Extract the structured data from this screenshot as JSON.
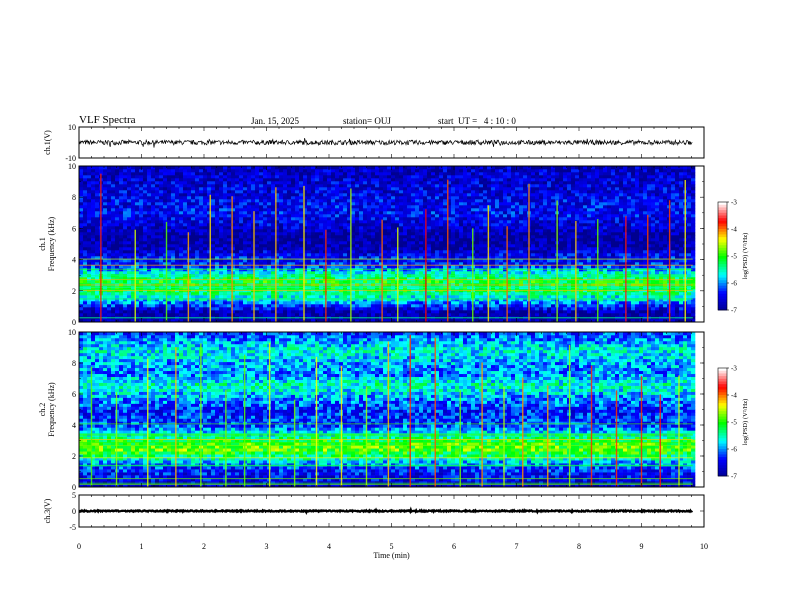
{
  "header": {
    "title": "VLF Spectra",
    "date": "Jan. 15, 2025",
    "station": "station= OUJ",
    "start": "start  UT =   4 : 10 : 0"
  },
  "colorbar_label": "log(PSD) (V²/Hz)",
  "colors": {
    "background": "#ffffff",
    "frame": "#000000",
    "colormap": [
      "#00008f",
      "#0000ff",
      "#00ffff",
      "#00ff00",
      "#ffff00",
      "#ff0000",
      "#ffffff"
    ]
  },
  "chart_data": [
    {
      "type": "line",
      "name": "ch1-waveform",
      "ylabel": "ch.1(V)",
      "ylim": [
        -10,
        10
      ],
      "yticks": [
        "10",
        "-10"
      ],
      "x_range_min": [
        0,
        10
      ],
      "data_extent_min": 9.82,
      "level_V": 0.0,
      "noise_amplitude_V": 1.5,
      "grid": false
    },
    {
      "type": "heatmap",
      "name": "ch1-spectrogram",
      "ylabel": "ch.1\nFrequency (kHz)",
      "ylim": [
        0,
        10
      ],
      "yticks": [
        "0",
        "2",
        "4",
        "6",
        "8",
        "10"
      ],
      "x_range_min": [
        0,
        10
      ],
      "data_extent_min": 9.82,
      "z_range_logPSD": [
        -7,
        -3
      ],
      "colorbar_ticks": [
        "-3",
        "-4",
        "-5",
        "-6",
        "-7"
      ],
      "profile_logPSD": [
        {
          "f_kHz": 0.0,
          "z": -6.8
        },
        {
          "f_kHz": 0.6,
          "z": -6.9
        },
        {
          "f_kHz": 1.0,
          "z": -6.3
        },
        {
          "f_kHz": 1.5,
          "z": -5.7
        },
        {
          "f_kHz": 2.0,
          "z": -5.2
        },
        {
          "f_kHz": 2.6,
          "z": -5.1
        },
        {
          "f_kHz": 3.2,
          "z": -5.6
        },
        {
          "f_kHz": 3.6,
          "z": -6.3
        },
        {
          "f_kHz": 4.2,
          "z": -6.4
        },
        {
          "f_kHz": 4.8,
          "z": -6.8
        },
        {
          "f_kHz": 5.5,
          "z": -6.9
        },
        {
          "f_kHz": 6.2,
          "z": -6.6
        },
        {
          "f_kHz": 7.0,
          "z": -6.4
        },
        {
          "f_kHz": 8.0,
          "z": -6.5
        },
        {
          "f_kHz": 9.0,
          "z": -6.6
        },
        {
          "f_kHz": 10.0,
          "z": -6.7
        }
      ],
      "bursts_min": [
        0.35,
        0.9,
        1.4,
        1.75,
        2.1,
        2.45,
        2.8,
        3.15,
        3.6,
        3.95,
        4.35,
        4.85,
        5.1,
        5.55,
        5.9,
        6.3,
        6.55,
        6.85,
        7.2,
        7.65,
        7.95,
        8.3,
        8.75,
        9.1,
        9.45,
        9.7
      ],
      "grid": false
    },
    {
      "type": "heatmap",
      "name": "ch2-spectrogram",
      "ylabel": "ch.2\nFrequency (kHz)",
      "ylim": [
        0,
        10
      ],
      "yticks": [
        "0",
        "2",
        "4",
        "6",
        "8",
        "10"
      ],
      "x_range_min": [
        0,
        10
      ],
      "data_extent_min": 9.82,
      "z_range_logPSD": [
        -7,
        -3
      ],
      "colorbar_ticks": [
        "-3",
        "-4",
        "-5",
        "-6",
        "-7"
      ],
      "profile_logPSD": [
        {
          "f_kHz": 0.0,
          "z": -6.7
        },
        {
          "f_kHz": 0.8,
          "z": -6.4
        },
        {
          "f_kHz": 1.3,
          "z": -6.2
        },
        {
          "f_kHz": 1.8,
          "z": -5.6
        },
        {
          "f_kHz": 2.4,
          "z": -4.8
        },
        {
          "f_kHz": 2.9,
          "z": -4.9
        },
        {
          "f_kHz": 3.4,
          "z": -5.6
        },
        {
          "f_kHz": 4.0,
          "z": -6.2
        },
        {
          "f_kHz": 5.0,
          "z": -6.3
        },
        {
          "f_kHz": 6.0,
          "z": -5.8
        },
        {
          "f_kHz": 6.6,
          "z": -5.5
        },
        {
          "f_kHz": 7.3,
          "z": -6.0
        },
        {
          "f_kHz": 8.0,
          "z": -5.9
        },
        {
          "f_kHz": 8.8,
          "z": -5.6
        },
        {
          "f_kHz": 9.4,
          "z": -5.9
        },
        {
          "f_kHz": 10.0,
          "z": -6.2
        }
      ],
      "bursts_min": [
        0.2,
        0.6,
        1.1,
        1.55,
        1.95,
        2.35,
        2.65,
        3.05,
        3.45,
        3.8,
        4.2,
        4.6,
        4.95,
        5.3,
        5.7,
        6.1,
        6.45,
        6.8,
        7.1,
        7.5,
        7.85,
        8.2,
        8.6,
        9.0,
        9.3,
        9.6
      ],
      "grid": false
    },
    {
      "type": "line",
      "name": "ch3-waveform",
      "ylabel": "ch.3(V)",
      "ylim": [
        -5,
        5
      ],
      "yticks": [
        "5",
        "0",
        "-5"
      ],
      "x_range_min": [
        0,
        10
      ],
      "data_extent_min": 9.82,
      "level_V": 0.0,
      "noise_amplitude_V": 0.2,
      "xlabel": "Time (min)",
      "xticks": [
        "0",
        "1",
        "2",
        "3",
        "4",
        "5",
        "6",
        "7",
        "8",
        "9",
        "10"
      ],
      "grid": false
    }
  ]
}
